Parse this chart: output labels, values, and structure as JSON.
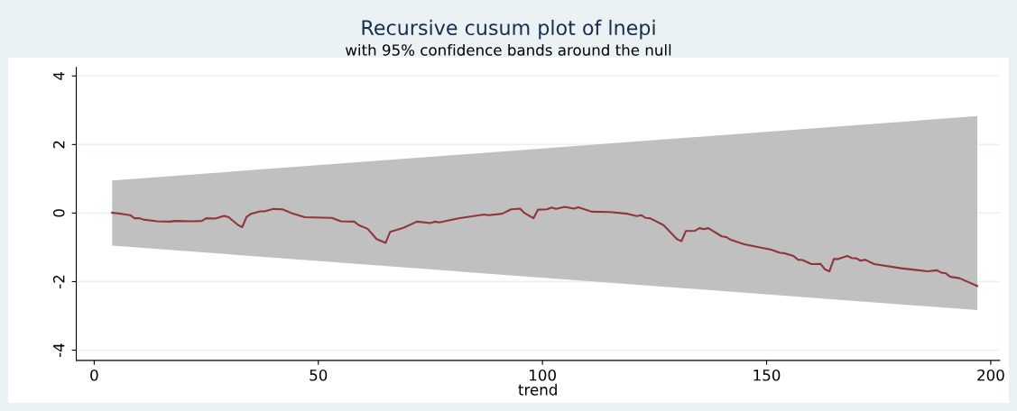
{
  "chart_data": {
    "type": "line",
    "title": "Recursive cusum plot of lnepi",
    "subtitle": "with 95% confidence bands around the null",
    "xlabel": "trend",
    "xlim": [
      -4,
      202
    ],
    "xticks": [
      0,
      50,
      100,
      150,
      200
    ],
    "ylim": [
      -4.3,
      4.25
    ],
    "yticks": [
      -4,
      -2,
      0,
      2,
      4
    ],
    "grid": "y",
    "legend": false,
    "series": [
      {
        "type": "area",
        "color": "#c0c0c0",
        "x": [
          4,
          197
        ],
        "values": [
          null,
          null
        ],
        "lower": [
          -0.95,
          -2.83
        ],
        "upper": [
          0.95,
          2.83
        ]
      },
      {
        "color": "#90353b",
        "x": [
          4,
          6,
          8,
          9,
          10,
          11,
          14,
          17,
          18,
          22,
          24,
          25,
          27,
          29,
          30,
          32,
          33,
          34,
          35,
          37,
          38,
          40,
          42,
          44,
          47,
          53,
          55,
          58,
          59,
          61,
          63,
          65,
          66,
          69,
          72,
          75,
          76,
          77,
          81,
          87,
          88,
          91,
          93,
          95,
          96,
          98,
          99,
          101,
          102,
          103,
          105,
          107,
          108,
          111,
          115,
          119,
          121,
          122,
          123,
          124,
          127,
          130,
          131,
          132,
          134,
          135,
          136,
          137,
          140,
          141,
          142,
          145,
          151,
          153,
          154,
          156,
          157,
          158,
          160,
          162,
          163,
          164,
          165,
          166,
          168,
          169,
          170,
          171,
          172,
          174,
          180,
          186,
          188,
          189,
          190,
          191,
          193,
          197
        ],
        "values": [
          0.01,
          -0.02,
          -0.06,
          -0.15,
          -0.15,
          -0.19,
          -0.24,
          -0.25,
          -0.23,
          -0.24,
          -0.23,
          -0.15,
          -0.16,
          -0.08,
          -0.12,
          -0.34,
          -0.41,
          -0.11,
          -0.02,
          0.05,
          0.05,
          0.12,
          0.11,
          0.0,
          -0.12,
          -0.14,
          -0.24,
          -0.25,
          -0.35,
          -0.46,
          -0.76,
          -0.87,
          -0.55,
          -0.43,
          -0.25,
          -0.29,
          -0.25,
          -0.27,
          -0.16,
          -0.04,
          -0.06,
          -0.02,
          0.11,
          0.13,
          0.0,
          -0.15,
          0.1,
          0.11,
          0.16,
          0.12,
          0.18,
          0.13,
          0.17,
          0.04,
          0.03,
          -0.02,
          -0.09,
          -0.06,
          -0.14,
          -0.15,
          -0.35,
          -0.76,
          -0.82,
          -0.52,
          -0.52,
          -0.44,
          -0.47,
          -0.44,
          -0.68,
          -0.7,
          -0.78,
          -0.91,
          -1.07,
          -1.16,
          -1.17,
          -1.25,
          -1.36,
          -1.37,
          -1.49,
          -1.48,
          -1.64,
          -1.7,
          -1.34,
          -1.34,
          -1.25,
          -1.31,
          -1.32,
          -1.39,
          -1.36,
          -1.49,
          -1.61,
          -1.7,
          -1.67,
          -1.74,
          -1.76,
          -1.86,
          -1.9,
          -2.13
        ]
      }
    ]
  }
}
